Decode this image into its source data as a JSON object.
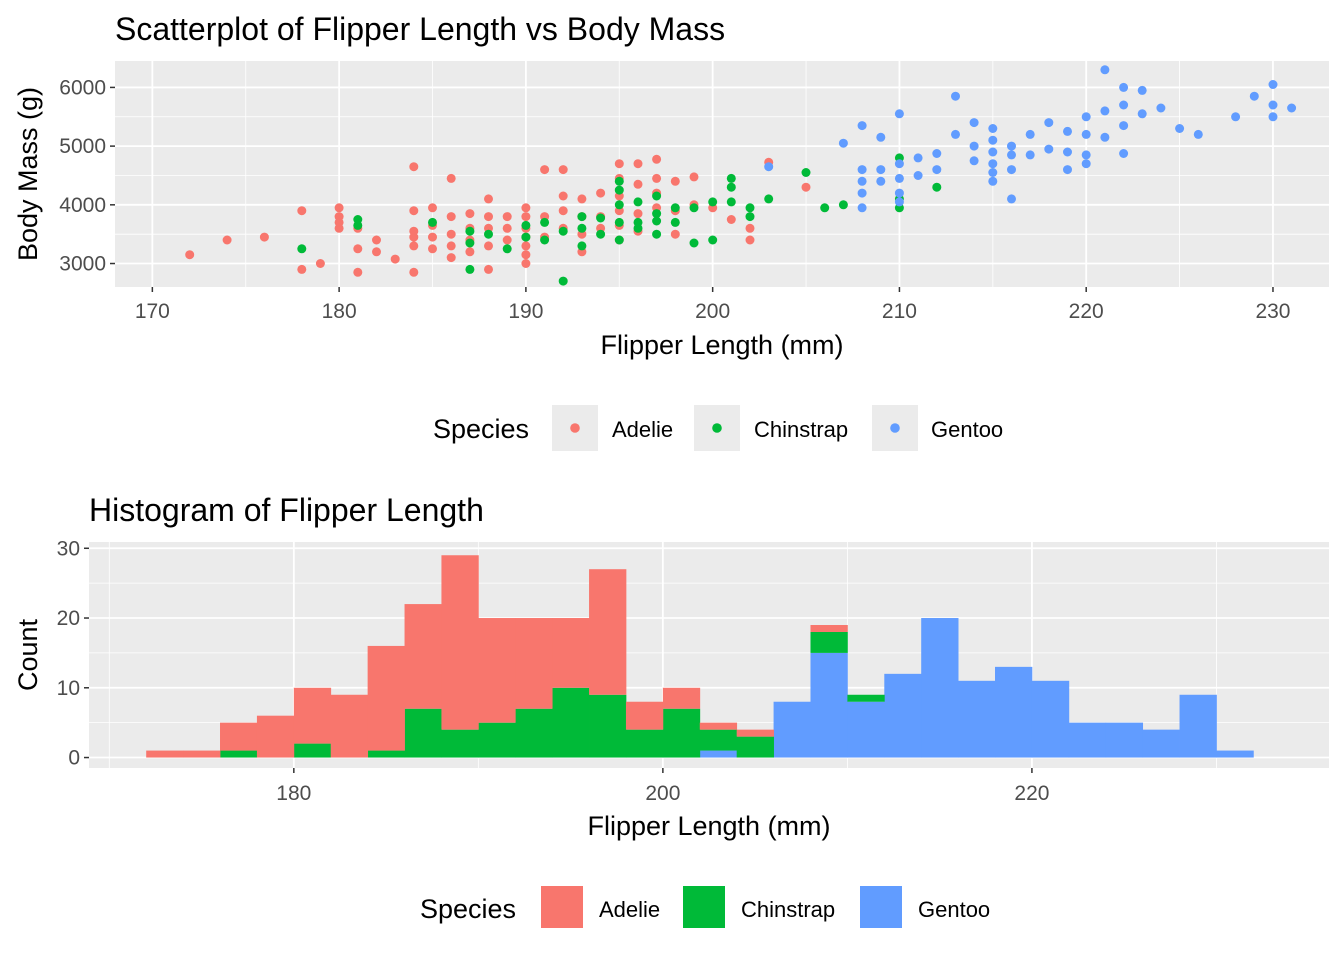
{
  "colors": {
    "panel_bg": "#ebebeb",
    "grid_major": "#ffffff",
    "tick": "#333333",
    "Adelie": "#f8766d",
    "Chinstrap": "#00ba38",
    "Gentoo": "#619cff"
  },
  "chart_data": [
    {
      "type": "scatter",
      "title": "Scatterplot of Flipper Length vs Body Mass",
      "xlabel": "Flipper Length (mm)",
      "ylabel": "Body Mass (g)",
      "xlim": [
        168,
        233
      ],
      "ylim": [
        2600,
        6450
      ],
      "xticks": [
        170,
        180,
        190,
        200,
        210,
        220,
        230
      ],
      "yticks": [
        3000,
        4000,
        5000,
        6000
      ],
      "grid": true,
      "legend": {
        "title": "Species",
        "position": "bottom",
        "entries": [
          "Adelie",
          "Chinstrap",
          "Gentoo"
        ]
      },
      "series": [
        {
          "name": "Adelie",
          "points": [
            [
              172,
              3150
            ],
            [
              174,
              3400
            ],
            [
              176,
              3450
            ],
            [
              178,
              3900
            ],
            [
              178,
              2900
            ],
            [
              179,
              3000
            ],
            [
              180,
              3950
            ],
            [
              180,
              3800
            ],
            [
              180,
              3700
            ],
            [
              180,
              3600
            ],
            [
              181,
              3250
            ],
            [
              181,
              2850
            ],
            [
              181,
              3600
            ],
            [
              182,
              3400
            ],
            [
              182,
              3200
            ],
            [
              183,
              3075
            ],
            [
              184,
              4650
            ],
            [
              184,
              3900
            ],
            [
              184,
              3550
            ],
            [
              184,
              3450
            ],
            [
              184,
              3300
            ],
            [
              184,
              2850
            ],
            [
              185,
              3950
            ],
            [
              185,
              3650
            ],
            [
              185,
              3450
            ],
            [
              185,
              3250
            ],
            [
              186,
              4450
            ],
            [
              186,
              3800
            ],
            [
              186,
              3500
            ],
            [
              186,
              3300
            ],
            [
              186,
              3100
            ],
            [
              187,
              3850
            ],
            [
              187,
              3600
            ],
            [
              187,
              3400
            ],
            [
              187,
              3200
            ],
            [
              188,
              4100
            ],
            [
              188,
              3800
            ],
            [
              188,
              3600
            ],
            [
              188,
              3300
            ],
            [
              188,
              2900
            ],
            [
              189,
              3800
            ],
            [
              189,
              3600
            ],
            [
              189,
              3400
            ],
            [
              190,
              3950
            ],
            [
              190,
              3800
            ],
            [
              190,
              3600
            ],
            [
              190,
              3450
            ],
            [
              190,
              3300
            ],
            [
              190,
              3150
            ],
            [
              190,
              3000
            ],
            [
              191,
              4600
            ],
            [
              191,
              3800
            ],
            [
              191,
              3450
            ],
            [
              192,
              4600
            ],
            [
              192,
              4150
            ],
            [
              192,
              3900
            ],
            [
              192,
              3600
            ],
            [
              193,
              4100
            ],
            [
              193,
              3800
            ],
            [
              193,
              3500
            ],
            [
              193,
              3200
            ],
            [
              194,
              4200
            ],
            [
              194,
              3800
            ],
            [
              194,
              3600
            ],
            [
              195,
              4700
            ],
            [
              195,
              4450
            ],
            [
              195,
              4150
            ],
            [
              195,
              3900
            ],
            [
              195,
              3650
            ],
            [
              195,
              3400
            ],
            [
              196,
              4700
            ],
            [
              196,
              4350
            ],
            [
              196,
              3850
            ],
            [
              196,
              3550
            ],
            [
              197,
              4775
            ],
            [
              197,
              4450
            ],
            [
              197,
              4200
            ],
            [
              197,
              3950
            ],
            [
              198,
              4400
            ],
            [
              198,
              3900
            ],
            [
              198,
              3500
            ],
            [
              199,
              4475
            ],
            [
              199,
              4000
            ],
            [
              200,
              3950
            ],
            [
              201,
              3750
            ],
            [
              202,
              3600
            ],
            [
              202,
              3400
            ],
            [
              203,
              4725
            ],
            [
              205,
              4300
            ]
          ]
        },
        {
          "name": "Chinstrap",
          "points": [
            [
              178,
              3250
            ],
            [
              181,
              3750
            ],
            [
              181,
              3650
            ],
            [
              185,
              3700
            ],
            [
              187,
              3550
            ],
            [
              187,
              3350
            ],
            [
              187,
              2900
            ],
            [
              188,
              3500
            ],
            [
              189,
              3250
            ],
            [
              190,
              3650
            ],
            [
              190,
              3450
            ],
            [
              191,
              3700
            ],
            [
              191,
              3400
            ],
            [
              192,
              3550
            ],
            [
              192,
              2700
            ],
            [
              193,
              3800
            ],
            [
              193,
              3600
            ],
            [
              193,
              3300
            ],
            [
              194,
              3775
            ],
            [
              194,
              3500
            ],
            [
              195,
              4400
            ],
            [
              195,
              4250
            ],
            [
              195,
              4000
            ],
            [
              195,
              3700
            ],
            [
              195,
              3400
            ],
            [
              196,
              4050
            ],
            [
              196,
              3700
            ],
            [
              196,
              3600
            ],
            [
              197,
              4150
            ],
            [
              197,
              3850
            ],
            [
              197,
              3725
            ],
            [
              197,
              3500
            ],
            [
              198,
              3950
            ],
            [
              198,
              3700
            ],
            [
              199,
              3950
            ],
            [
              199,
              3350
            ],
            [
              200,
              4050
            ],
            [
              200,
              3400
            ],
            [
              201,
              4450
            ],
            [
              201,
              4300
            ],
            [
              201,
              4050
            ],
            [
              202,
              3950
            ],
            [
              202,
              3800
            ],
            [
              203,
              4100
            ],
            [
              205,
              4550
            ],
            [
              206,
              3950
            ],
            [
              207,
              4000
            ],
            [
              210,
              4800
            ],
            [
              210,
              4100
            ],
            [
              210,
              3950
            ],
            [
              212,
              4300
            ]
          ]
        },
        {
          "name": "Gentoo",
          "points": [
            [
              203,
              4650
            ],
            [
              207,
              5050
            ],
            [
              208,
              5350
            ],
            [
              208,
              4600
            ],
            [
              208,
              4400
            ],
            [
              208,
              4200
            ],
            [
              208,
              3950
            ],
            [
              209,
              5150
            ],
            [
              209,
              4600
            ],
            [
              209,
              4400
            ],
            [
              210,
              5550
            ],
            [
              210,
              4700
            ],
            [
              210,
              4450
            ],
            [
              210,
              4200
            ],
            [
              210,
              4050
            ],
            [
              211,
              4800
            ],
            [
              211,
              4500
            ],
            [
              212,
              4875
            ],
            [
              212,
              4600
            ],
            [
              213,
              5850
            ],
            [
              213,
              5200
            ],
            [
              214,
              5400
            ],
            [
              214,
              5000
            ],
            [
              214,
              4750
            ],
            [
              215,
              5300
            ],
            [
              215,
              5100
            ],
            [
              215,
              4900
            ],
            [
              215,
              4700
            ],
            [
              215,
              4550
            ],
            [
              215,
              4400
            ],
            [
              216,
              5000
            ],
            [
              216,
              4850
            ],
            [
              216,
              4600
            ],
            [
              216,
              4100
            ],
            [
              217,
              5200
            ],
            [
              217,
              4850
            ],
            [
              218,
              5400
            ],
            [
              218,
              4950
            ],
            [
              219,
              5250
            ],
            [
              219,
              4900
            ],
            [
              219,
              4600
            ],
            [
              220,
              5500
            ],
            [
              220,
              5200
            ],
            [
              220,
              4850
            ],
            [
              220,
              4700
            ],
            [
              221,
              6300
            ],
            [
              221,
              5600
            ],
            [
              221,
              5150
            ],
            [
              222,
              6000
            ],
            [
              222,
              5700
            ],
            [
              222,
              5350
            ],
            [
              222,
              4875
            ],
            [
              223,
              5950
            ],
            [
              223,
              5550
            ],
            [
              224,
              5650
            ],
            [
              225,
              5300
            ],
            [
              226,
              5200
            ],
            [
              228,
              5500
            ],
            [
              229,
              5850
            ],
            [
              230,
              6050
            ],
            [
              230,
              5700
            ],
            [
              230,
              5500
            ],
            [
              231,
              5650
            ]
          ]
        }
      ]
    },
    {
      "type": "bar",
      "stacked": true,
      "title": "Histogram of Flipper Length",
      "xlabel": "Flipper Length (mm)",
      "ylabel": "Count",
      "bin_width": 2,
      "x": [
        173,
        175,
        177,
        179,
        181,
        183,
        185,
        187,
        189,
        191,
        193,
        195,
        197,
        199,
        201,
        203,
        205,
        207,
        209,
        211,
        213,
        215,
        217,
        219,
        221,
        223,
        225,
        227,
        229,
        231,
        233
      ],
      "xlim": [
        168.9,
        236.1
      ],
      "ylim": [
        -1.5,
        30.9
      ],
      "xticks": [
        180,
        200,
        220
      ],
      "yticks": [
        0,
        10,
        20,
        30
      ],
      "grid": true,
      "legend": {
        "title": "Species",
        "position": "bottom",
        "entries": [
          "Adelie",
          "Chinstrap",
          "Gentoo"
        ]
      },
      "series": [
        {
          "name": "Gentoo",
          "values": [
            0,
            0,
            0,
            0,
            0,
            0,
            0,
            0,
            0,
            0,
            0,
            0,
            0,
            0,
            0,
            1,
            0,
            8,
            15,
            8,
            12,
            20,
            11,
            13,
            11,
            5,
            5,
            4,
            9,
            1,
            0
          ]
        },
        {
          "name": "Chinstrap",
          "values": [
            0,
            0,
            1,
            0,
            2,
            0,
            1,
            7,
            4,
            5,
            7,
            10,
            9,
            4,
            7,
            3,
            3,
            0,
            3,
            1,
            0,
            0,
            0,
            0,
            0,
            0,
            0,
            0,
            0,
            0,
            0
          ]
        },
        {
          "name": "Adelie",
          "values": [
            1,
            1,
            4,
            6,
            8,
            9,
            15,
            15,
            25,
            15,
            13,
            10,
            18,
            4,
            3,
            1,
            1,
            0,
            1,
            0,
            0,
            0,
            0,
            0,
            0,
            0,
            0,
            0,
            0,
            0,
            0
          ]
        }
      ]
    }
  ]
}
